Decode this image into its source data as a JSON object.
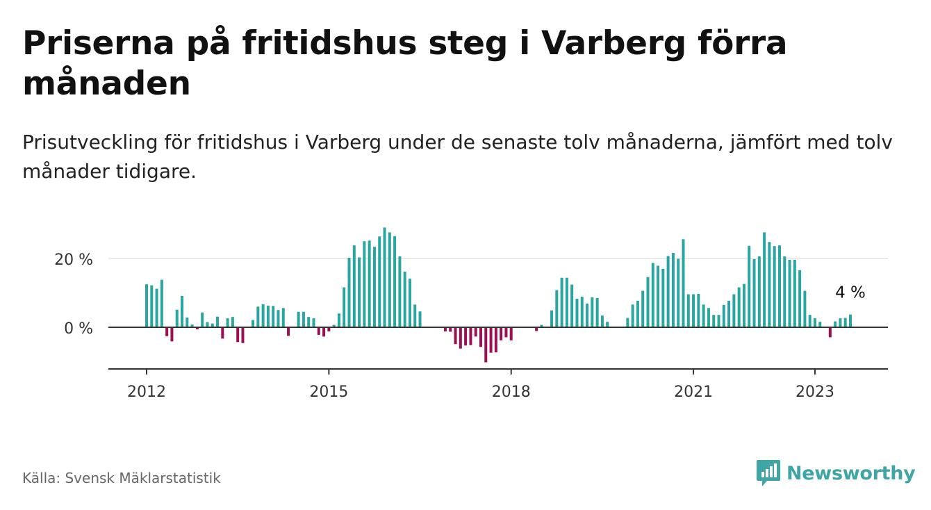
{
  "title": "Priserna på fritidshus steg i Varberg förra månaden",
  "subtitle": "Prisutveckling för fritidshus i Varberg under de senaste tolv månaderna, jämfört med tolv månader tidigare.",
  "source": "Källa: Svensk Mäklarstatistik",
  "brand": "Newsworthy",
  "colors": {
    "positive": "#2aa6a0",
    "negative": "#9c1053",
    "axis": "#333333",
    "grid": "#dddddd",
    "brand": "#3fa6a5"
  },
  "chart_data": {
    "type": "bar",
    "x_start": "2012-01",
    "x_end": "2023-01",
    "xticks": [
      "2012",
      "2015",
      "2018",
      "2021",
      "2023"
    ],
    "yticks": [
      {
        "value": 0,
        "label": "0 %"
      },
      {
        "value": 20,
        "label": "20 %"
      }
    ],
    "ylim": [
      -12,
      28
    ],
    "grid": true,
    "last_label": "4 %",
    "values": [
      12.5,
      12.2,
      11.2,
      13.8,
      -2.6,
      -4.1,
      5.1,
      9.1,
      2.8,
      0.8,
      -0.6,
      4.3,
      1.5,
      1.1,
      3.1,
      -3.3,
      2.6,
      3.0,
      -4.3,
      -4.6,
      0.0,
      2.1,
      6.0,
      6.7,
      6.3,
      6.2,
      5.0,
      5.6,
      -2.5,
      0.0,
      4.5,
      4.5,
      3.0,
      2.6,
      -2.2,
      -2.7,
      -1.2,
      0.7,
      4.0,
      11.6,
      20.2,
      23.8,
      20.3,
      25.0,
      25.2,
      23.4,
      26.4,
      29.0,
      27.6,
      26.5,
      20.6,
      16.2,
      14.1,
      6.6,
      4.6,
      0.0,
      0.0,
      0.0,
      0.0,
      -1.2,
      -1.3,
      -4.9,
      -6.2,
      -5.3,
      -5.2,
      -2.7,
      -5.7,
      -10.2,
      -7.4,
      -7.3,
      -3.8,
      -2.9,
      -3.8,
      0.0,
      0.0,
      0.0,
      0.0,
      -1.1,
      0.7,
      0.0,
      4.9,
      10.8,
      14.4,
      14.4,
      12.4,
      8.3,
      8.9,
      6.9,
      8.7,
      8.5,
      3.4,
      1.6,
      0.0,
      0.0,
      0.0,
      2.7,
      6.6,
      7.7,
      10.6,
      14.6,
      18.7,
      17.9,
      17.0,
      20.7,
      21.6,
      19.9,
      25.6,
      9.6,
      9.6,
      9.7,
      6.6,
      5.6,
      3.6,
      3.6,
      6.5,
      7.7,
      9.6,
      11.6,
      12.6,
      23.7,
      19.8,
      20.6,
      27.6,
      24.8,
      23.6,
      23.8,
      20.6,
      19.6,
      19.6,
      16.6,
      10.6,
      3.6,
      2.6,
      1.6,
      0.0,
      -2.9,
      1.7,
      2.6,
      2.7,
      3.7
    ]
  }
}
